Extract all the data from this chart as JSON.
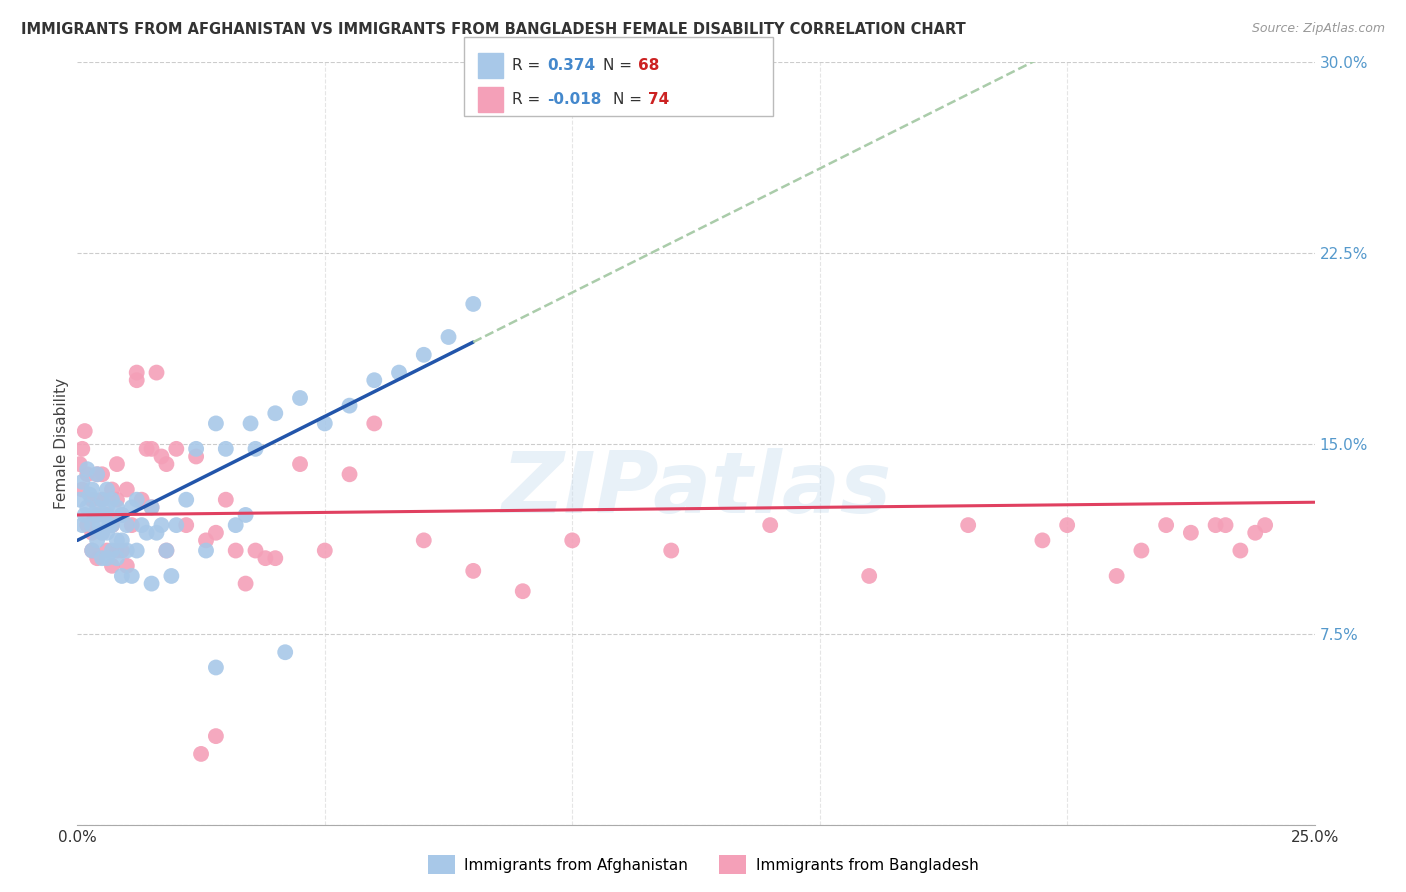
{
  "title": "IMMIGRANTS FROM AFGHANISTAN VS IMMIGRANTS FROM BANGLADESH FEMALE DISABILITY CORRELATION CHART",
  "source": "Source: ZipAtlas.com",
  "ylabel": "Female Disability",
  "x_min": 0.0,
  "x_max": 0.25,
  "y_min": 0.0,
  "y_max": 0.3,
  "afg_R": 0.374,
  "afg_N": 68,
  "ban_R": -0.018,
  "ban_N": 74,
  "afg_color": "#a8c8e8",
  "ban_color": "#f4a0b8",
  "afg_line_color": "#2255aa",
  "ban_line_color": "#e04060",
  "trend_dash_color": "#aaccaa",
  "background_color": "#ffffff",
  "grid_color": "#cccccc",
  "watermark": "ZIPatlas",
  "afg_x": [
    0.0005,
    0.001,
    0.001,
    0.0015,
    0.002,
    0.002,
    0.0025,
    0.003,
    0.003,
    0.003,
    0.0035,
    0.004,
    0.004,
    0.004,
    0.0045,
    0.005,
    0.005,
    0.005,
    0.0055,
    0.006,
    0.006,
    0.006,
    0.006,
    0.0065,
    0.007,
    0.007,
    0.007,
    0.008,
    0.008,
    0.008,
    0.009,
    0.009,
    0.009,
    0.01,
    0.01,
    0.011,
    0.011,
    0.012,
    0.012,
    0.013,
    0.014,
    0.015,
    0.015,
    0.016,
    0.017,
    0.018,
    0.019,
    0.02,
    0.022,
    0.024,
    0.026,
    0.028,
    0.03,
    0.032,
    0.034,
    0.036,
    0.04,
    0.045,
    0.05,
    0.055,
    0.06,
    0.065,
    0.07,
    0.075,
    0.08,
    0.035,
    0.028,
    0.042
  ],
  "afg_y": [
    0.128,
    0.135,
    0.118,
    0.122,
    0.14,
    0.125,
    0.13,
    0.118,
    0.108,
    0.132,
    0.122,
    0.125,
    0.112,
    0.138,
    0.118,
    0.128,
    0.115,
    0.105,
    0.122,
    0.125,
    0.115,
    0.105,
    0.132,
    0.118,
    0.128,
    0.118,
    0.108,
    0.125,
    0.112,
    0.105,
    0.122,
    0.112,
    0.098,
    0.118,
    0.108,
    0.125,
    0.098,
    0.128,
    0.108,
    0.118,
    0.115,
    0.125,
    0.095,
    0.115,
    0.118,
    0.108,
    0.098,
    0.118,
    0.128,
    0.148,
    0.108,
    0.158,
    0.148,
    0.118,
    0.122,
    0.148,
    0.162,
    0.168,
    0.158,
    0.165,
    0.175,
    0.178,
    0.185,
    0.192,
    0.205,
    0.158,
    0.062,
    0.068
  ],
  "ban_x": [
    0.0005,
    0.001,
    0.001,
    0.0015,
    0.002,
    0.002,
    0.003,
    0.003,
    0.003,
    0.004,
    0.004,
    0.004,
    0.005,
    0.005,
    0.005,
    0.006,
    0.006,
    0.007,
    0.007,
    0.007,
    0.008,
    0.008,
    0.009,
    0.009,
    0.01,
    0.01,
    0.011,
    0.012,
    0.013,
    0.014,
    0.015,
    0.016,
    0.017,
    0.018,
    0.02,
    0.022,
    0.024,
    0.026,
    0.028,
    0.03,
    0.032,
    0.034,
    0.036,
    0.038,
    0.04,
    0.045,
    0.05,
    0.055,
    0.06,
    0.07,
    0.08,
    0.09,
    0.1,
    0.12,
    0.14,
    0.16,
    0.18,
    0.195,
    0.2,
    0.21,
    0.215,
    0.22,
    0.225,
    0.23,
    0.232,
    0.235,
    0.238,
    0.24,
    0.012,
    0.015,
    0.018,
    0.008,
    0.025,
    0.028
  ],
  "ban_y": [
    0.142,
    0.148,
    0.132,
    0.155,
    0.138,
    0.118,
    0.128,
    0.115,
    0.108,
    0.138,
    0.122,
    0.105,
    0.138,
    0.115,
    0.128,
    0.122,
    0.108,
    0.132,
    0.118,
    0.102,
    0.128,
    0.108,
    0.122,
    0.108,
    0.132,
    0.102,
    0.118,
    0.178,
    0.128,
    0.148,
    0.125,
    0.178,
    0.145,
    0.142,
    0.148,
    0.118,
    0.145,
    0.112,
    0.115,
    0.128,
    0.108,
    0.095,
    0.108,
    0.105,
    0.105,
    0.142,
    0.108,
    0.138,
    0.158,
    0.112,
    0.1,
    0.092,
    0.112,
    0.108,
    0.118,
    0.098,
    0.118,
    0.112,
    0.118,
    0.098,
    0.108,
    0.118,
    0.115,
    0.118,
    0.118,
    0.108,
    0.115,
    0.118,
    0.175,
    0.148,
    0.108,
    0.142,
    0.028,
    0.035
  ],
  "afg_line_x0": 0.0,
  "afg_line_y0": 0.112,
  "afg_line_x1": 0.08,
  "afg_line_y1": 0.19,
  "ban_line_x0": 0.0,
  "ban_line_y0": 0.122,
  "ban_line_x1": 0.25,
  "ban_line_y1": 0.127
}
